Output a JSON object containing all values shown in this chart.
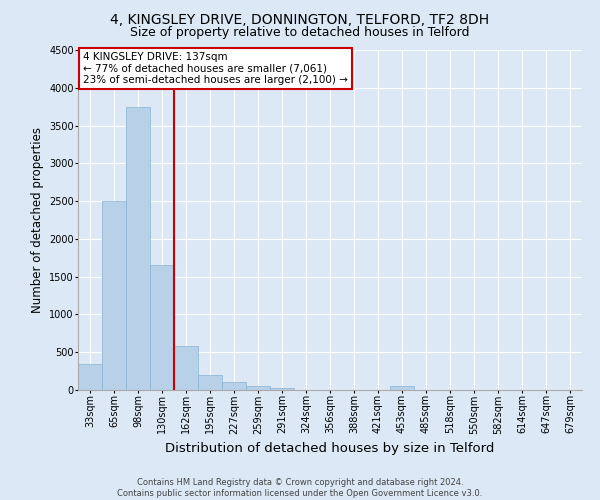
{
  "title_line1": "4, KINGSLEY DRIVE, DONNINGTON, TELFORD, TF2 8DH",
  "title_line2": "Size of property relative to detached houses in Telford",
  "xlabel": "Distribution of detached houses by size in Telford",
  "ylabel": "Number of detached properties",
  "footer": "Contains HM Land Registry data © Crown copyright and database right 2024.\nContains public sector information licensed under the Open Government Licence v3.0.",
  "categories": [
    "33sqm",
    "65sqm",
    "98sqm",
    "130sqm",
    "162sqm",
    "195sqm",
    "227sqm",
    "259sqm",
    "291sqm",
    "324sqm",
    "356sqm",
    "388sqm",
    "421sqm",
    "453sqm",
    "485sqm",
    "518sqm",
    "550sqm",
    "582sqm",
    "614sqm",
    "647sqm",
    "679sqm"
  ],
  "values": [
    350,
    2500,
    3750,
    1650,
    580,
    200,
    100,
    50,
    30,
    0,
    0,
    0,
    0,
    50,
    0,
    0,
    0,
    0,
    0,
    0,
    0
  ],
  "bar_color": "#b8d0e8",
  "bar_edge_color": "#8ab4d4",
  "red_line_x": 3.5,
  "annotation_line1": "4 KINGSLEY DRIVE: 137sqm",
  "annotation_line2": "← 77% of detached houses are smaller (7,061)",
  "annotation_line3": "23% of semi-detached houses are larger (2,100) →",
  "annotation_box_color": "#ffffff",
  "annotation_box_edge_color": "#cc0000",
  "ylim": [
    0,
    4500
  ],
  "yticks": [
    0,
    500,
    1000,
    1500,
    2000,
    2500,
    3000,
    3500,
    4000,
    4500
  ],
  "background_color": "#dce8f5",
  "grid_color": "#ffffff",
  "title_fontsize": 10,
  "subtitle_fontsize": 9,
  "tick_fontsize": 7,
  "ylabel_fontsize": 8.5,
  "xlabel_fontsize": 9.5,
  "annotation_fontsize": 7.5,
  "footer_fontsize": 6
}
